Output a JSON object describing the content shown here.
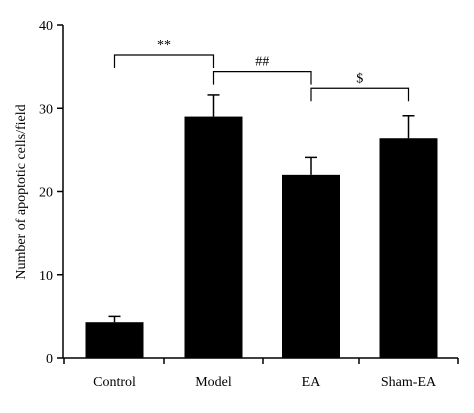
{
  "chart_data": {
    "type": "bar",
    "title": "",
    "xlabel": "",
    "ylabel": "Number of apoptotic cells/field",
    "categories": [
      "Control",
      "Model",
      "EA",
      "Sham-EA"
    ],
    "values": [
      4.3,
      29.0,
      22.0,
      26.4
    ],
    "error": [
      0.7,
      2.6,
      2.1,
      2.7
    ],
    "ylim": [
      0,
      40
    ],
    "yticks": [
      "0",
      "10",
      "20",
      "30",
      "40"
    ],
    "bar_color": "#000000",
    "grid": false,
    "legend": "none",
    "significance": [
      {
        "from": 0,
        "to": 1,
        "label": "**",
        "y": 36.4
      },
      {
        "from": 1,
        "to": 2,
        "label": "##",
        "y": 34.4
      },
      {
        "from": 2,
        "to": 3,
        "label": "$",
        "y": 32.4
      }
    ]
  }
}
